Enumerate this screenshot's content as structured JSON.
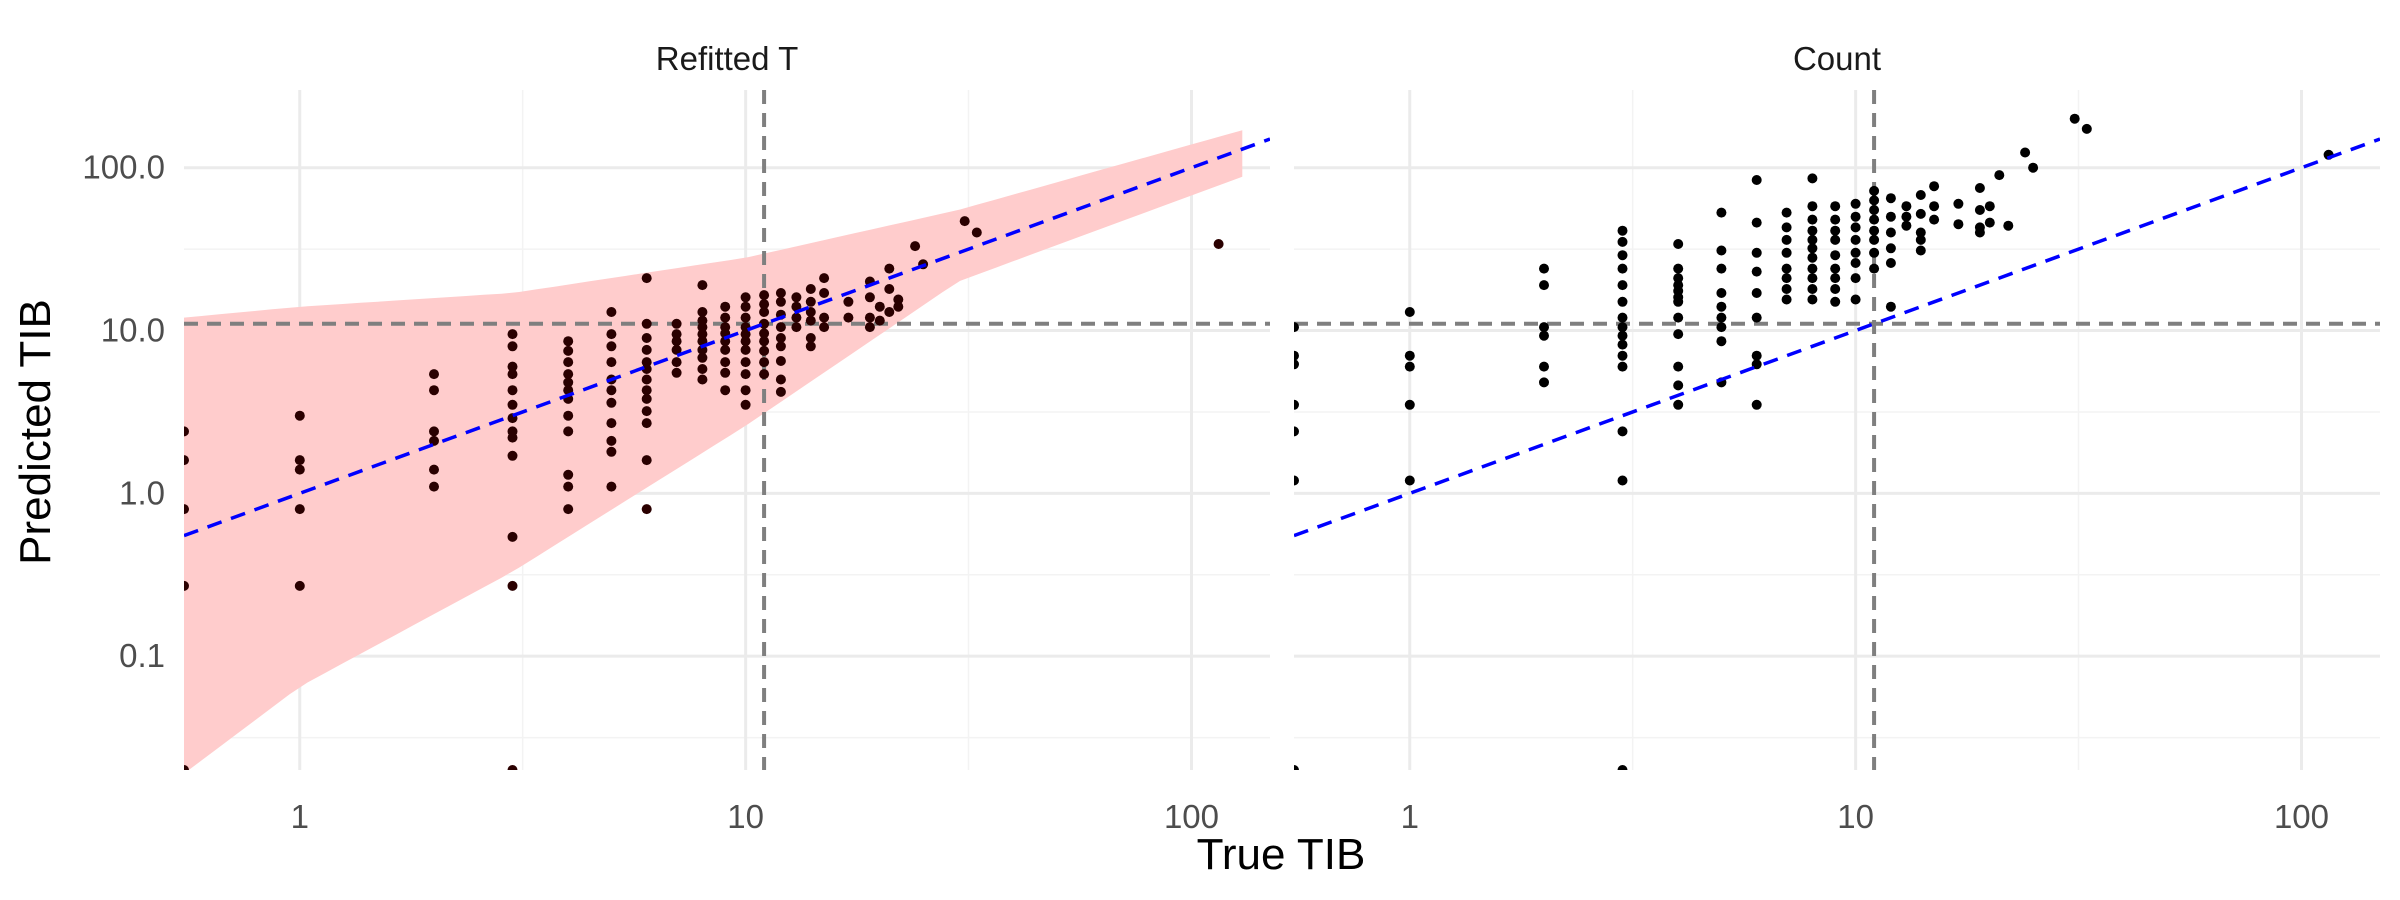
{
  "chart_data": {
    "type": "scatter",
    "xlabel": "True TIB",
    "ylabel": "Predicted TIB",
    "x_scale": "log10",
    "y_scale": "log10",
    "xlim": [
      0.55,
      150
    ],
    "ylim": [
      0.02,
      300
    ],
    "x_ticks": [
      1,
      10,
      100
    ],
    "x_tick_labels": [
      "1",
      "10",
      "100"
    ],
    "y_ticks": [
      0.1,
      1,
      10,
      100
    ],
    "y_tick_labels": [
      "0.1",
      "1.0",
      "10.0",
      "100.0"
    ],
    "reference_lines": {
      "vertical_x": 11,
      "horizontal_y": 11,
      "identity_line": "y = x"
    },
    "grid": true,
    "colors": {
      "points": "#000000",
      "identity": "#0000ff",
      "reference": "#7f7f7f",
      "band": "#ffcccc"
    },
    "panels": [
      {
        "title": "Refitted T",
        "interval_band": {
          "x": [
            0.55,
            1,
            3,
            10,
            30,
            130
          ],
          "lower": [
            0.019,
            0.065,
            0.33,
            2.6,
            20,
            88
          ],
          "upper": [
            12,
            14,
            17,
            28,
            55,
            170
          ]
        },
        "points": [
          [
            0.55,
            2.4
          ],
          [
            0.55,
            1.6
          ],
          [
            0.55,
            0.8
          ],
          [
            0.55,
            0.27
          ],
          [
            0.55,
            0.02
          ],
          [
            1,
            3
          ],
          [
            1,
            1.6
          ],
          [
            1,
            1.4
          ],
          [
            1,
            0.8
          ],
          [
            1,
            0.27
          ],
          [
            2,
            5.4
          ],
          [
            2,
            4.3
          ],
          [
            2,
            2.4
          ],
          [
            2,
            2.1
          ],
          [
            2,
            1.4
          ],
          [
            2,
            1.1
          ],
          [
            3,
            9.5
          ],
          [
            3,
            8
          ],
          [
            3,
            6
          ],
          [
            3,
            5.4
          ],
          [
            3,
            4.3
          ],
          [
            3,
            3.5
          ],
          [
            3,
            2.9
          ],
          [
            3,
            2.4
          ],
          [
            3,
            2.2
          ],
          [
            3,
            1.7
          ],
          [
            3,
            0.54
          ],
          [
            3,
            0.27
          ],
          [
            3,
            0.02
          ],
          [
            4,
            8.6
          ],
          [
            4,
            7.5
          ],
          [
            4,
            6.4
          ],
          [
            4,
            5.4
          ],
          [
            4,
            4.8
          ],
          [
            4,
            4.3
          ],
          [
            4,
            3.8
          ],
          [
            4,
            3
          ],
          [
            4,
            2.4
          ],
          [
            4,
            1.3
          ],
          [
            4,
            1.1
          ],
          [
            4,
            0.8
          ],
          [
            5,
            13
          ],
          [
            5,
            9.5
          ],
          [
            5,
            8
          ],
          [
            5,
            6.4
          ],
          [
            5,
            5
          ],
          [
            5,
            4.3
          ],
          [
            5,
            3.6
          ],
          [
            5,
            2.7
          ],
          [
            5,
            2.1
          ],
          [
            5,
            1.8
          ],
          [
            5,
            1.1
          ],
          [
            6,
            21
          ],
          [
            6,
            11
          ],
          [
            6,
            9
          ],
          [
            6,
            7.6
          ],
          [
            6,
            6.4
          ],
          [
            6,
            5.8
          ],
          [
            6,
            5
          ],
          [
            6,
            4.3
          ],
          [
            6,
            3.8
          ],
          [
            6,
            3.2
          ],
          [
            6,
            2.7
          ],
          [
            6,
            1.6
          ],
          [
            6,
            0.8
          ],
          [
            7,
            11
          ],
          [
            7,
            9.5
          ],
          [
            7,
            8.6
          ],
          [
            7,
            7.6
          ],
          [
            7,
            6.4
          ],
          [
            7,
            5.5
          ],
          [
            8,
            19
          ],
          [
            8,
            13
          ],
          [
            8,
            11.5
          ],
          [
            8,
            10.5
          ],
          [
            8,
            9.5
          ],
          [
            8,
            8.6
          ],
          [
            8,
            7.6
          ],
          [
            8,
            6.8
          ],
          [
            8,
            5.8
          ],
          [
            8,
            5
          ],
          [
            9,
            14
          ],
          [
            9,
            12
          ],
          [
            9,
            10.5
          ],
          [
            9,
            9.6
          ],
          [
            9,
            8.6
          ],
          [
            9,
            7.6
          ],
          [
            9,
            6.4
          ],
          [
            9,
            5.5
          ],
          [
            9,
            4.3
          ],
          [
            10,
            16
          ],
          [
            10,
            14
          ],
          [
            10,
            12
          ],
          [
            10,
            10.5
          ],
          [
            10,
            9.5
          ],
          [
            10,
            8.6
          ],
          [
            10,
            7.6
          ],
          [
            10,
            6.4
          ],
          [
            10,
            5.4
          ],
          [
            10,
            4.3
          ],
          [
            10,
            3.5
          ],
          [
            11,
            16.5
          ],
          [
            11,
            14.5
          ],
          [
            11,
            13
          ],
          [
            11,
            11
          ],
          [
            11,
            9.6
          ],
          [
            11,
            8.6
          ],
          [
            11,
            7.5
          ],
          [
            11,
            6.4
          ],
          [
            11,
            5.4
          ],
          [
            12,
            17
          ],
          [
            12,
            15
          ],
          [
            12,
            12.5
          ],
          [
            12,
            10.5
          ],
          [
            12,
            9
          ],
          [
            12,
            8
          ],
          [
            12,
            6.5
          ],
          [
            12,
            5
          ],
          [
            12,
            4.2
          ],
          [
            13,
            16
          ],
          [
            13,
            14
          ],
          [
            13,
            12
          ],
          [
            13,
            10.5
          ],
          [
            14,
            18
          ],
          [
            14,
            15
          ],
          [
            14,
            13
          ],
          [
            14,
            11.5
          ],
          [
            14,
            9
          ],
          [
            14,
            8
          ],
          [
            15,
            21
          ],
          [
            15,
            17
          ],
          [
            15,
            12
          ],
          [
            15,
            10.5
          ],
          [
            17,
            15
          ],
          [
            17,
            12
          ],
          [
            19,
            20
          ],
          [
            19,
            16
          ],
          [
            19,
            12
          ],
          [
            19,
            10.5
          ],
          [
            20,
            14
          ],
          [
            20,
            11.5
          ],
          [
            21,
            24
          ],
          [
            21,
            18
          ],
          [
            21,
            13
          ],
          [
            22,
            15.5
          ],
          [
            22,
            14
          ],
          [
            24,
            33
          ],
          [
            25,
            25.5
          ],
          [
            31,
            47
          ],
          [
            33,
            40
          ],
          [
            115,
            34
          ]
        ]
      },
      {
        "title": "Count",
        "points": [
          [
            0.55,
            10.5
          ],
          [
            0.55,
            7
          ],
          [
            0.55,
            6.2
          ],
          [
            0.55,
            3.5
          ],
          [
            0.55,
            2.4
          ],
          [
            0.55,
            1.2
          ],
          [
            0.55,
            0.02
          ],
          [
            1,
            13
          ],
          [
            1,
            7
          ],
          [
            1,
            6
          ],
          [
            1,
            3.5
          ],
          [
            1,
            1.2
          ],
          [
            2,
            24
          ],
          [
            2,
            19
          ],
          [
            2,
            10.5
          ],
          [
            2,
            9.3
          ],
          [
            2,
            6
          ],
          [
            2,
            4.8
          ],
          [
            3,
            41
          ],
          [
            3,
            35
          ],
          [
            3,
            29
          ],
          [
            3,
            24
          ],
          [
            3,
            19
          ],
          [
            3,
            15
          ],
          [
            3,
            12
          ],
          [
            3,
            10.5
          ],
          [
            3,
            9.3
          ],
          [
            3,
            8.2
          ],
          [
            3,
            7
          ],
          [
            3,
            6
          ],
          [
            3,
            2.4
          ],
          [
            3,
            1.2
          ],
          [
            3,
            0.02
          ],
          [
            4,
            34
          ],
          [
            4,
            24
          ],
          [
            4,
            21
          ],
          [
            4,
            19
          ],
          [
            4,
            17.5
          ],
          [
            4,
            16
          ],
          [
            4,
            15
          ],
          [
            4,
            12
          ],
          [
            4,
            9.5
          ],
          [
            4,
            6
          ],
          [
            4,
            4.6
          ],
          [
            4,
            3.5
          ],
          [
            5,
            53
          ],
          [
            5,
            31
          ],
          [
            5,
            24
          ],
          [
            5,
            17
          ],
          [
            5,
            14
          ],
          [
            5,
            12
          ],
          [
            5,
            10.5
          ],
          [
            5,
            8.6
          ],
          [
            5,
            4.8
          ],
          [
            6,
            84
          ],
          [
            6,
            46
          ],
          [
            6,
            30
          ],
          [
            6,
            23
          ],
          [
            6,
            17
          ],
          [
            6,
            12
          ],
          [
            6,
            7
          ],
          [
            6,
            6.2
          ],
          [
            6,
            3.5
          ],
          [
            7,
            53
          ],
          [
            7,
            43
          ],
          [
            7,
            36
          ],
          [
            7,
            30
          ],
          [
            7,
            24
          ],
          [
            7,
            21
          ],
          [
            7,
            18
          ],
          [
            7,
            15.5
          ],
          [
            8,
            86
          ],
          [
            8,
            58
          ],
          [
            8,
            48
          ],
          [
            8,
            41
          ],
          [
            8,
            36
          ],
          [
            8,
            32
          ],
          [
            8,
            28
          ],
          [
            8,
            24
          ],
          [
            8,
            21
          ],
          [
            8,
            18
          ],
          [
            8,
            15.5
          ],
          [
            9,
            58
          ],
          [
            9,
            48
          ],
          [
            9,
            41
          ],
          [
            9,
            36
          ],
          [
            9,
            29
          ],
          [
            9,
            24
          ],
          [
            9,
            21
          ],
          [
            9,
            18
          ],
          [
            9,
            15
          ],
          [
            10,
            60
          ],
          [
            10,
            50
          ],
          [
            10,
            43
          ],
          [
            10,
            36
          ],
          [
            10,
            30
          ],
          [
            10,
            26
          ],
          [
            10,
            21
          ],
          [
            10,
            15.5
          ],
          [
            11,
            72
          ],
          [
            11,
            63
          ],
          [
            11,
            55
          ],
          [
            11,
            48
          ],
          [
            11,
            41
          ],
          [
            11,
            36
          ],
          [
            11,
            30
          ],
          [
            11,
            24
          ],
          [
            12,
            65
          ],
          [
            12,
            50
          ],
          [
            12,
            40
          ],
          [
            12,
            32
          ],
          [
            12,
            26
          ],
          [
            12,
            14
          ],
          [
            13,
            58
          ],
          [
            13,
            50
          ],
          [
            13,
            44
          ],
          [
            14,
            68
          ],
          [
            14,
            52
          ],
          [
            14,
            40
          ],
          [
            14,
            36
          ],
          [
            14,
            31
          ],
          [
            15,
            77
          ],
          [
            15,
            58
          ],
          [
            15,
            48
          ],
          [
            17,
            60
          ],
          [
            17,
            45
          ],
          [
            19,
            75
          ],
          [
            19,
            55
          ],
          [
            19,
            43
          ],
          [
            19,
            40
          ],
          [
            20,
            58
          ],
          [
            20,
            46
          ],
          [
            21,
            90
          ],
          [
            22,
            44
          ],
          [
            24,
            124
          ],
          [
            25,
            100
          ],
          [
            31,
            200
          ],
          [
            33,
            173
          ],
          [
            115,
            120
          ]
        ]
      }
    ]
  }
}
